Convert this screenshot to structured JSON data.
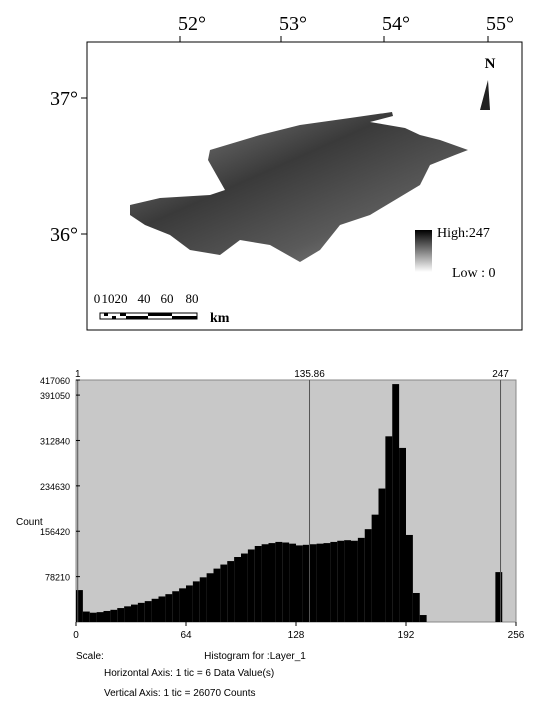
{
  "map": {
    "lon_labels": [
      "52°",
      "53°",
      "54°",
      "55°"
    ],
    "lat_labels": [
      "37°",
      "36°"
    ],
    "north": "N",
    "legend_high": "High:247",
    "legend_low": "Low : 0",
    "scale_labels": [
      "0",
      "10",
      "20",
      "40",
      "60",
      "80"
    ],
    "scale_unit": "km"
  },
  "chart_data": {
    "type": "histogram",
    "title": "Histogram for :Layer_1",
    "y_label": "Count",
    "bins": [
      0,
      4,
      8,
      12,
      16,
      20,
      24,
      28,
      32,
      36,
      40,
      44,
      48,
      52,
      56,
      60,
      64,
      68,
      72,
      76,
      80,
      84,
      88,
      92,
      96,
      100,
      104,
      108,
      112,
      116,
      120,
      124,
      128,
      132,
      136,
      140,
      144,
      148,
      152,
      156,
      160,
      164,
      168,
      172,
      176,
      180,
      184,
      188,
      192,
      196,
      200,
      204,
      208,
      212,
      216,
      220,
      224,
      228,
      232,
      236,
      240,
      244,
      248,
      252,
      256
    ],
    "values": [
      55000,
      18000,
      16000,
      17000,
      19000,
      21000,
      24000,
      27000,
      30000,
      33000,
      36000,
      40000,
      44000,
      48000,
      53000,
      58000,
      63000,
      70000,
      77000,
      84000,
      92000,
      99000,
      105000,
      112000,
      118000,
      125000,
      131000,
      134000,
      136000,
      138000,
      137000,
      135000,
      132000,
      133000,
      134000,
      135000,
      136000,
      138000,
      140000,
      141000,
      140000,
      145000,
      160000,
      185000,
      230000,
      320000,
      410000,
      300000,
      150000,
      50000,
      12000,
      0,
      0,
      0,
      0,
      0,
      0,
      0,
      0,
      0,
      0,
      86000,
      0,
      0
    ],
    "color": "#000000",
    "xlim": [
      0,
      256
    ],
    "xticks": [
      0,
      64,
      128,
      192,
      256
    ],
    "ylim": [
      0,
      417060
    ],
    "yticks": [
      78210,
      156420,
      234630,
      312840,
      391050,
      417060
    ],
    "markers": [
      1,
      135.86,
      247
    ],
    "notes": [
      "Scale:",
      "Horizontal Axis: 1 tic =  6 Data Value(s)",
      "Vertical Axis: 1 tic =  26070 Counts"
    ]
  }
}
